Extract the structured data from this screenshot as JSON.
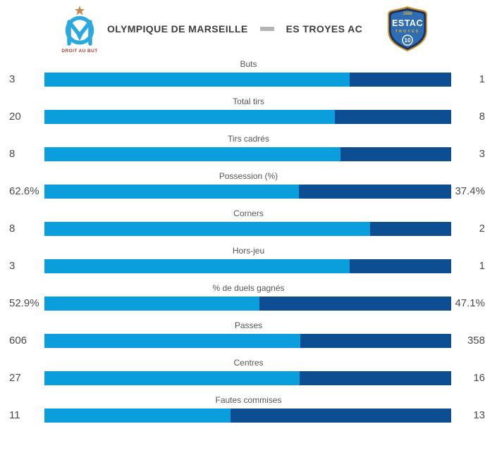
{
  "header": {
    "home_name": "OLYMPIQUE DE MARSEILLE",
    "away_name": "ES TROYES AC",
    "home_logo": {
      "motto": "DROIT AU BUT",
      "monogram": "OM"
    },
    "away_logo": {
      "year": "1986",
      "club": "ESTAC",
      "city": "TROYES",
      "number": "10"
    }
  },
  "colors": {
    "home_bar": "#0a9edc",
    "away_bar": "#0d4d92",
    "separator_dash": "#b3b3b3"
  },
  "chart_data": {
    "type": "bar",
    "subtype": "head-to-head-stacked-comparison",
    "legend_position": "none",
    "grid": false,
    "home_team": "Olympique de Marseille",
    "away_team": "ES Troyes AC",
    "categories": [
      "Buts",
      "Total tirs",
      "Tirs cadrés",
      "Possession (%)",
      "Corners",
      "Hors-jeu",
      "% de duels gagnés",
      "Passes",
      "Centres",
      "Fautes commises"
    ],
    "series": [
      {
        "name": "Olympique de Marseille",
        "values": [
          3,
          20,
          8,
          62.6,
          8,
          3,
          52.9,
          606,
          27,
          11
        ]
      },
      {
        "name": "ES Troyes AC",
        "values": [
          1,
          8,
          3,
          37.4,
          2,
          1,
          47.1,
          358,
          16,
          13
        ]
      }
    ],
    "rows": [
      {
        "label": "Buts",
        "home": "3",
        "away": "1"
      },
      {
        "label": "Total tirs",
        "home": "20",
        "away": "8"
      },
      {
        "label": "Tirs cadrés",
        "home": "8",
        "away": "3"
      },
      {
        "label": "Possession (%)",
        "home": "62.6%",
        "away": "37.4%"
      },
      {
        "label": "Corners",
        "home": "8",
        "away": "2"
      },
      {
        "label": "Hors-jeu",
        "home": "3",
        "away": "1"
      },
      {
        "label": "% de duels gagnés",
        "home": "52.9%",
        "away": "47.1%"
      },
      {
        "label": "Passes",
        "home": "606",
        "away": "358"
      },
      {
        "label": "Centres",
        "home": "27",
        "away": "16"
      },
      {
        "label": "Fautes commises",
        "home": "11",
        "away": "13"
      }
    ]
  }
}
